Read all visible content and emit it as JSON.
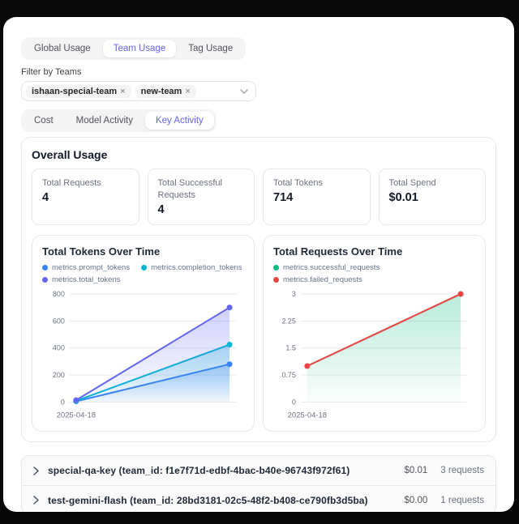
{
  "colors": {
    "accent": "#6366f1",
    "prompt_tokens": "#3b82f6",
    "completion_tokens": "#06b6d4",
    "total_tokens": "#6366f1",
    "successful_requests": "#10b981",
    "failed_requests": "#ef4444",
    "page_bg": "#0a0a0a",
    "card_bg": "#ffffff"
  },
  "icons": {
    "select_caret": "chevron-down-icon",
    "row_expander": "chevron-right-icon",
    "chip_remove": "close-icon"
  },
  "tabs_primary": {
    "items": [
      {
        "label": "Global Usage",
        "active": false
      },
      {
        "label": "Team Usage",
        "active": true
      },
      {
        "label": "Tag Usage",
        "active": false
      }
    ]
  },
  "filter": {
    "label": "Filter by Teams",
    "chips": [
      {
        "label": "ishaan-special-team",
        "remove_glyph": "×"
      },
      {
        "label": "new-team",
        "remove_glyph": "×"
      }
    ]
  },
  "tabs_secondary": {
    "items": [
      {
        "label": "Cost",
        "active": false
      },
      {
        "label": "Model Activity",
        "active": false
      },
      {
        "label": "Key Activity",
        "active": true
      }
    ]
  },
  "overall": {
    "title": "Overall Usage",
    "stats": [
      {
        "label": "Total Requests",
        "value": "4"
      },
      {
        "label": "Total Successful Requests",
        "value": "4"
      },
      {
        "label": "Total Tokens",
        "value": "714"
      },
      {
        "label": "Total Spend",
        "value": "$0.01"
      }
    ]
  },
  "chart_data": [
    {
      "type": "area",
      "title": "Total Tokens Over Time",
      "x": [
        "2025-04-18",
        ""
      ],
      "x_tick_labels": [
        "2025-04-18"
      ],
      "series": [
        {
          "name": "metrics.prompt_tokens",
          "color": "#3b82f6",
          "values": [
            5,
            280
          ],
          "fill": true
        },
        {
          "name": "metrics.completion_tokens",
          "color": "#06b6d4",
          "values": [
            9,
            425
          ],
          "fill": true
        },
        {
          "name": "metrics.total_tokens",
          "color": "#6366f1",
          "values": [
            14,
            700
          ],
          "fill": true
        }
      ],
      "ylim": [
        0,
        800
      ],
      "yticks": [
        0,
        200,
        400,
        600,
        800
      ],
      "grid": true,
      "legend_position": "top"
    },
    {
      "type": "area",
      "title": "Total Requests Over Time",
      "x": [
        "2025-04-18",
        ""
      ],
      "x_tick_labels": [
        "2025-04-18"
      ],
      "series": [
        {
          "name": "metrics.successful_requests",
          "color": "#10b981",
          "values": [
            1,
            3
          ],
          "fill": true
        },
        {
          "name": "metrics.failed_requests",
          "color": "#ef4444",
          "values": [
            1,
            3
          ],
          "fill": false
        }
      ],
      "ylim": [
        0,
        3
      ],
      "yticks": [
        0,
        0.75,
        1.5,
        2.25,
        3
      ],
      "grid": true,
      "legend_position": "top"
    }
  ],
  "keys_list": [
    {
      "label": "special-qa-key (team_id: f1e7f71d-edbf-4bac-b40e-96743f972f61)",
      "spend": "$0.01",
      "requests": "3 requests"
    },
    {
      "label": "test-gemini-flash (team_id: 28bd3181-02c5-48f2-b408-ce790fb3d5ba)",
      "spend": "$0.00",
      "requests": "1 requests"
    }
  ]
}
